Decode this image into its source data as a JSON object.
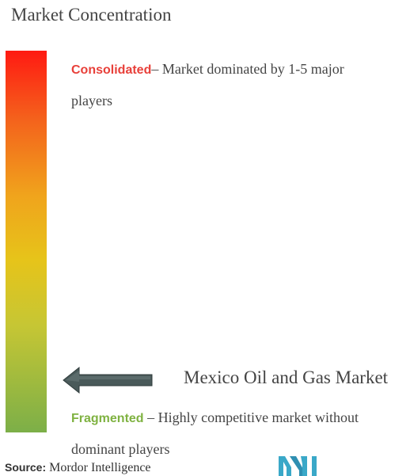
{
  "title": "Market Concentration",
  "scale": {
    "top_keyword": "Consolidated",
    "top_description": "– Market dominated by 1-5 major players",
    "bottom_keyword": "Fragmented",
    "bottom_description": " – Highly competitive market without dominant players",
    "colors": {
      "top": "#ff1a12",
      "middle": "#e6c41a",
      "bottom": "#7caf48",
      "consolidated_text": "#e8403a",
      "fragmented_text": "#7fb241",
      "arrow": "#4a5a5a",
      "logo": "#3aa8c8"
    }
  },
  "market": {
    "label": "Mexico Oil and Gas Market",
    "position_fraction_from_top": 0.86
  },
  "footer": {
    "source_label": "Source:",
    "source_text": " Mordor Intelligence",
    "logo_icon": "mordor-intelligence-logo"
  }
}
